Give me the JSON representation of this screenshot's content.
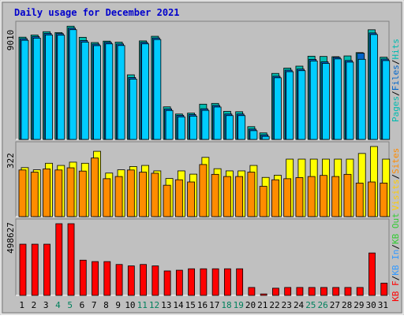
{
  "title": "Daily usage for December 2021",
  "colors": {
    "frame": "#c0c0c0",
    "plot_bg": "#c0c0c0",
    "hits": "#00ccff",
    "files": "#0066cc",
    "pages": "#00bbb0",
    "visits": "#ffff00",
    "sites": "#ff8c00",
    "kbf": "#ff0000",
    "kbin": "#3399ff",
    "kbout": "#33cc33",
    "title_text": "#0000cc",
    "weekend_label": "#00805c"
  },
  "chart_data": [
    {
      "type": "bar",
      "panel": "top",
      "max_label": "9010",
      "legend": [
        {
          "text": "Pages",
          "color": "#00bbb0"
        },
        {
          "text": "/",
          "color": "#000000"
        },
        {
          "text": "Files",
          "color": "#0066cc"
        },
        {
          "text": "/",
          "color": "#000000"
        },
        {
          "text": "Hits",
          "color": "#00bbb0"
        }
      ],
      "ylim": [
        0,
        9010
      ],
      "series": [
        {
          "name": "Pages",
          "values": [
            8010,
            8180,
            8440,
            8370,
            8870,
            8000,
            7590,
            7700,
            7620,
            5060,
            7720,
            8080,
            2550,
            1990,
            2060,
            2760,
            2820,
            2200,
            2170,
            1000,
            510,
            5170,
            5590,
            5740,
            6520,
            6500,
            6480,
            6540,
            6800,
            8590,
            6440
          ]
        },
        {
          "name": "Files",
          "values": [
            7890,
            8060,
            8310,
            8290,
            8720,
            7750,
            7470,
            7610,
            7480,
            4850,
            7610,
            7950,
            2390,
            1890,
            1950,
            2400,
            2660,
            1990,
            1990,
            810,
            360,
            4950,
            5430,
            5510,
            6270,
            6080,
            6430,
            6180,
            6750,
            8340,
            6300
          ]
        },
        {
          "name": "Hits",
          "values": [
            7890,
            8060,
            8310,
            8290,
            8720,
            7750,
            7470,
            7610,
            7480,
            4850,
            7610,
            7950,
            2390,
            1890,
            1950,
            2400,
            2660,
            1990,
            1990,
            810,
            360,
            4950,
            5430,
            5510,
            6270,
            6080,
            6430,
            6180,
            6400,
            8340,
            6300
          ]
        }
      ]
    },
    {
      "type": "bar",
      "panel": "middle",
      "max_label": "322",
      "legend": [
        {
          "text": "Visits",
          "color": "#ffcc00"
        },
        {
          "text": "/",
          "color": "#000000"
        },
        {
          "text": "Sites",
          "color": "#ff8c00"
        }
      ],
      "ylim": [
        0,
        322
      ],
      "series": [
        {
          "name": "Visits",
          "values": [
            225,
            215,
            245,
            235,
            250,
            245,
            300,
            200,
            215,
            230,
            235,
            210,
            175,
            210,
            195,
            272,
            220,
            210,
            210,
            235,
            180,
            190,
            264,
            264,
            264,
            264,
            264,
            264,
            290,
            322,
            264
          ]
        },
        {
          "name": "Sites",
          "values": [
            225,
            215,
            230,
            225,
            235,
            220,
            280,
            185,
            195,
            225,
            215,
            210,
            155,
            180,
            170,
            250,
            205,
            195,
            195,
            215,
            150,
            180,
            185,
            190,
            195,
            200,
            195,
            205,
            165,
            170,
            165
          ]
        }
      ]
    },
    {
      "type": "bar",
      "panel": "bottom",
      "max_label": "498627",
      "legend": [
        {
          "text": "KB F",
          "color": "#ff0000"
        },
        {
          "text": "/",
          "color": "#000000"
        },
        {
          "text": "KB In",
          "color": "#3399ff"
        },
        {
          "text": "/",
          "color": "#000000"
        },
        {
          "text": "KB Out",
          "color": "#33cc33"
        }
      ],
      "ylim": [
        0,
        498627
      ],
      "series": [
        {
          "name": "KB F",
          "values": [
            356000,
            356000,
            356000,
            498627,
            498627,
            245000,
            235000,
            235000,
            215000,
            205000,
            215000,
            205000,
            170000,
            175000,
            185000,
            185000,
            185000,
            185000,
            185000,
            55000,
            10000,
            50000,
            55000,
            55000,
            55000,
            55000,
            55000,
            55000,
            55000,
            295000,
            85000
          ]
        }
      ]
    }
  ],
  "x_labels": [
    "1",
    "2",
    "3",
    "4",
    "5",
    "6",
    "7",
    "8",
    "9",
    "10",
    "11",
    "12",
    "13",
    "14",
    "15",
    "16",
    "17",
    "18",
    "19",
    "20",
    "21",
    "22",
    "23",
    "24",
    "25",
    "26",
    "27",
    "28",
    "29",
    "30",
    "31"
  ],
  "weekend_days": [
    "4",
    "5",
    "11",
    "12",
    "18",
    "19",
    "25",
    "26"
  ]
}
